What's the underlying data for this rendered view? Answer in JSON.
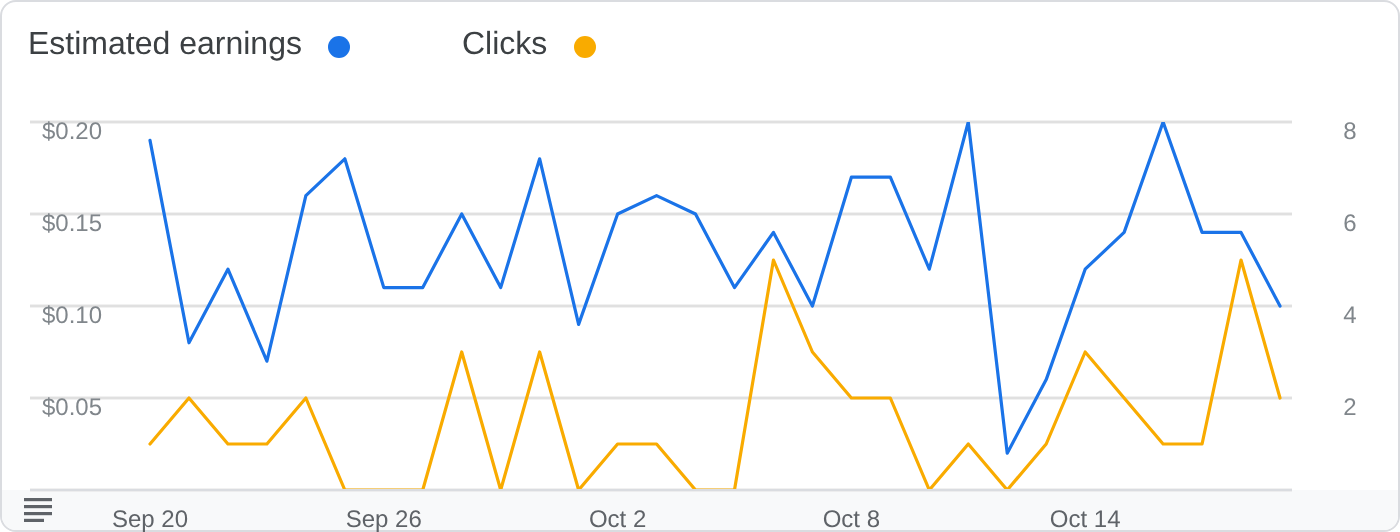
{
  "chart_data": {
    "type": "line",
    "categories": [
      "Sep 20",
      null,
      null,
      null,
      null,
      null,
      "Sep 26",
      null,
      null,
      null,
      null,
      null,
      "Oct 2",
      null,
      null,
      null,
      null,
      null,
      "Oct 8",
      null,
      null,
      null,
      null,
      null,
      "Oct 14",
      null,
      null,
      null,
      null,
      null
    ],
    "series": [
      {
        "name": "Estimated earnings",
        "color": "#1a73e8",
        "values": [
          0.19,
          0.08,
          0.12,
          0.07,
          0.16,
          0.18,
          0.11,
          0.11,
          0.15,
          0.11,
          0.18,
          0.09,
          0.15,
          0.16,
          0.15,
          0.11,
          0.14,
          0.1,
          0.17,
          0.17,
          0.12,
          0.2,
          0.02,
          0.06,
          0.12,
          0.14,
          0.2,
          0.14,
          0.14,
          0.1
        ]
      },
      {
        "name": "Clicks",
        "color": "#f9ab00",
        "axis": "y2",
        "values": [
          1,
          2,
          1,
          1,
          2,
          0,
          0,
          0,
          3,
          0,
          3,
          0,
          1,
          1,
          0,
          0,
          5,
          3,
          2,
          2,
          0,
          1,
          0,
          1,
          3,
          2,
          1,
          1,
          5,
          2
        ]
      }
    ],
    "ylim": [
      0,
      0.2
    ],
    "yticks": [
      {
        "value": 0,
        "label": null
      },
      {
        "value": 0.05,
        "label": "$0.05"
      },
      {
        "value": 0.1,
        "label": "$0.10"
      },
      {
        "value": 0.15,
        "label": "$0.15"
      },
      {
        "value": 0.2,
        "label": "$0.20"
      }
    ],
    "y2lim": [
      0,
      8
    ],
    "y2ticks": [
      {
        "value": 0,
        "label": null
      },
      2,
      4,
      6,
      8
    ],
    "grid": "y",
    "legend": "top left",
    "marker": "none",
    "line_style": "solid"
  }
}
